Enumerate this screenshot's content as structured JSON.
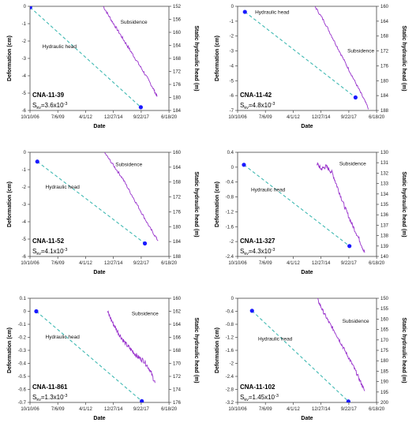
{
  "chart_data": [
    {
      "type": "line",
      "well_id": "CNA-11-39",
      "sky_label": "S",
      "sky_sub": "kv",
      "sky_value": "=3.6x10",
      "sky_exp": "-3",
      "xlabel": "Date",
      "ylabel": "Deformation (cm)",
      "y2label": "Static hydraulic head (m)",
      "x_ticks": [
        "10/10/06",
        "7/6/09",
        "4/1/12",
        "12/27/14",
        "9/22/17",
        "6/18/20"
      ],
      "y_ticks": [
        "0",
        "-1",
        "-2",
        "-3",
        "-4",
        "-5",
        "-6"
      ],
      "y2_ticks": [
        "152",
        "156",
        "160",
        "164",
        "168",
        "172",
        "176",
        "180",
        "184"
      ],
      "xlim": [
        2006.78,
        2020.47
      ],
      "ylim": [
        -6,
        0
      ],
      "y2lim": [
        152,
        184
      ],
      "series": [
        {
          "name": "Subsidence",
          "style": "solid",
          "color": "#9933cc",
          "x": [
            2014.0,
            2014.8,
            2015.6,
            2016.4,
            2017.2,
            2018.0,
            2018.9,
            2019.3
          ],
          "y": [
            0.0,
            -0.8,
            -1.55,
            -2.3,
            -3.05,
            -3.8,
            -4.7,
            -5.2
          ],
          "noise": 0.08
        },
        {
          "name": "Hydraulic head",
          "style": "dashed",
          "color": "#3fb9b2",
          "axis": "y2",
          "x": [
            2006.8,
            2017.7
          ],
          "y": [
            152.3,
            183.0
          ]
        }
      ],
      "annotations": [
        {
          "text": "Subsidence",
          "x": 2015.7,
          "y": -1.0
        },
        {
          "text": "Hydraulic head",
          "x": 2008.0,
          "y": -2.4
        }
      ]
    },
    {
      "type": "line",
      "well_id": "CNA-11-42",
      "sky_label": "S",
      "sky_sub": "kv",
      "sky_value": "=4.8x10",
      "sky_exp": "-3",
      "xlabel": "Date",
      "ylabel": "Deformation (cm)",
      "y2label": "Static hydraulic head (m)",
      "x_ticks": [
        "10/10/06",
        "7/6/09",
        "4/1/12",
        "12/27/14",
        "9/22/17",
        "6/18/20"
      ],
      "y_ticks": [
        "0",
        "-1",
        "-2",
        "-3",
        "-4",
        "-5",
        "-6",
        "-7"
      ],
      "y2_ticks": [
        "160",
        "164",
        "168",
        "172",
        "176",
        "180",
        "184",
        "188"
      ],
      "xlim": [
        2006.78,
        2020.47
      ],
      "ylim": [
        -7,
        0
      ],
      "y2lim": [
        160,
        188
      ],
      "series": [
        {
          "name": "Subsidence",
          "style": "solid",
          "color": "#9933cc",
          "x": [
            2014.4,
            2015.3,
            2016.2,
            2017.1,
            2018.0,
            2018.9,
            2019.7
          ],
          "y": [
            0.0,
            -1.0,
            -2.2,
            -3.4,
            -4.6,
            -5.8,
            -6.9
          ],
          "noise": 0.07
        },
        {
          "name": "Hydraulic head",
          "style": "dashed",
          "color": "#3fb9b2",
          "axis": "y2",
          "x": [
            2007.5,
            2018.4
          ],
          "y": [
            161.5,
            184.5
          ]
        }
      ],
      "annotations": [
        {
          "text": "Subsidence",
          "x": 2017.6,
          "y": -3.1
        },
        {
          "text": "Hydraulic head",
          "x": 2008.5,
          "y": -0.5
        }
      ]
    },
    {
      "type": "line",
      "well_id": "CNA-11-52",
      "sky_label": "S",
      "sky_sub": "kv",
      "sky_value": "=4.1x10",
      "sky_exp": "-3",
      "xlabel": "Date",
      "ylabel": "Deformation (cm)",
      "y2label": "Static hydraulic head (m)",
      "x_ticks": [
        "10/10/06",
        "7/6/09",
        "4/1/12",
        "12/27/14",
        "9/22/17",
        "6/18/20"
      ],
      "y_ticks": [
        "0",
        "-1",
        "-2",
        "-3",
        "-4",
        "-5",
        "-6"
      ],
      "y2_ticks": [
        "160",
        "164",
        "168",
        "172",
        "176",
        "180",
        "184",
        "188"
      ],
      "xlim": [
        2006.78,
        2020.47
      ],
      "ylim": [
        -6,
        0
      ],
      "y2lim": [
        160,
        188
      ],
      "series": [
        {
          "name": "Subsidence",
          "style": "solid",
          "color": "#9933cc",
          "x": [
            2014.1,
            2015.0,
            2015.9,
            2016.8,
            2017.7,
            2018.6,
            2019.4
          ],
          "y": [
            0.0,
            -0.75,
            -1.5,
            -2.45,
            -3.4,
            -4.35,
            -5.1
          ],
          "noise": 0.07
        },
        {
          "name": "Hydraulic head",
          "style": "dashed",
          "color": "#3fb9b2",
          "axis": "y2",
          "x": [
            2007.5,
            2018.1
          ],
          "y": [
            162.5,
            184.5
          ]
        }
      ],
      "annotations": [
        {
          "text": "Subsidence",
          "x": 2015.2,
          "y": -0.8
        },
        {
          "text": "Hydraulic head",
          "x": 2008.3,
          "y": -2.1
        }
      ]
    },
    {
      "type": "line",
      "well_id": "CNA-11-327",
      "sky_label": "S",
      "sky_sub": "kv",
      "sky_value": "=4.3x10",
      "sky_exp": "-3",
      "xlabel": "Date",
      "ylabel": "Deformation (cm)",
      "y2label": "Static hydraulic head (m)",
      "x_ticks": [
        "10/10/06",
        "7/6/09",
        "4/1/12",
        "12/27/14",
        "9/22/17",
        "6/18/20"
      ],
      "y_ticks": [
        "0.4",
        "0",
        "-0.4",
        "-0.8",
        "-1.2",
        "-1.6",
        "-2",
        "-2.4"
      ],
      "y2_ticks": [
        "130",
        "131",
        "132",
        "133",
        "134",
        "135",
        "136",
        "137",
        "138",
        "139",
        "140"
      ],
      "xlim": [
        2006.78,
        2020.47
      ],
      "ylim": [
        -2.4,
        0.4
      ],
      "y2lim": [
        130,
        140
      ],
      "series": [
        {
          "name": "Subsidence",
          "style": "solid",
          "color": "#9933cc",
          "x": [
            2014.6,
            2015.0,
            2015.5,
            2016.1,
            2016.7,
            2017.3,
            2018.0,
            2018.7,
            2019.3
          ],
          "y": [
            0.1,
            -0.05,
            0.02,
            -0.15,
            -0.6,
            -1.05,
            -1.5,
            -1.9,
            -2.3
          ],
          "noise": 0.12
        },
        {
          "name": "Hydraulic head",
          "style": "dashed",
          "color": "#3fb9b2",
          "axis": "y2",
          "x": [
            2007.4,
            2017.8
          ],
          "y": [
            131.2,
            139.0
          ]
        }
      ],
      "annotations": [
        {
          "text": "Subsidence",
          "x": 2016.8,
          "y": 0.05
        },
        {
          "text": "Hydraulic head",
          "x": 2008.1,
          "y": -0.65
        }
      ]
    },
    {
      "type": "line",
      "well_id": "CNA-11-861",
      "sky_label": "S",
      "sky_sub": "kv",
      "sky_value": "=1.3x10",
      "sky_exp": "-3",
      "xlabel": "Date",
      "ylabel": "Deformation (cm)",
      "y2label": "Static hydraulic head (m)",
      "x_ticks": [
        "10/10/06",
        "7/6/09",
        "4/1/12",
        "12/27/14",
        "9/22/17",
        "6/18/20"
      ],
      "y_ticks": [
        "0.1",
        "0",
        "-0.1",
        "-0.2",
        "-0.3",
        "-0.4",
        "-0.5",
        "-0.6",
        "-0.7"
      ],
      "y2_ticks": [
        "160",
        "162",
        "164",
        "166",
        "168",
        "170",
        "172",
        "174",
        "176"
      ],
      "xlim": [
        2006.78,
        2020.47
      ],
      "ylim": [
        -0.7,
        0.1
      ],
      "y2lim": [
        160,
        176
      ],
      "series": [
        {
          "name": "Subsidence",
          "style": "solid",
          "color": "#9933cc",
          "x": [
            2014.4,
            2015.0,
            2015.6,
            2016.2,
            2016.8,
            2017.4,
            2018.0,
            2018.6,
            2019.1
          ],
          "y": [
            0.0,
            -0.1,
            -0.18,
            -0.25,
            -0.3,
            -0.35,
            -0.38,
            -0.45,
            -0.55
          ],
          "noise": 0.14
        },
        {
          "name": "Hydraulic head",
          "style": "dashed",
          "color": "#3fb9b2",
          "axis": "y2",
          "x": [
            2007.4,
            2017.8
          ],
          "y": [
            162.0,
            175.8
          ]
        }
      ],
      "annotations": [
        {
          "text": "Subsidence",
          "x": 2016.8,
          "y": -0.03
        },
        {
          "text": "Hydraulic head",
          "x": 2008.3,
          "y": -0.21
        }
      ]
    },
    {
      "type": "line",
      "well_id": "CNA-11-102",
      "sky_label": "S",
      "sky_sub": "kv",
      "sky_value": "=1.45x10",
      "sky_exp": "-3",
      "xlabel": "Date",
      "ylabel": "Deformation (cm)",
      "y2label": "Static hydraulic head (m)",
      "x_ticks": [
        "10/10/06",
        "7/6/09",
        "4/1/12",
        "12/27/14",
        "9/22/17",
        "6/18/20"
      ],
      "y_ticks": [
        "0",
        "-0.4",
        "-0.8",
        "-1.2",
        "-1.6",
        "-2",
        "-2.4",
        "-2.8",
        "-3.2"
      ],
      "y2_ticks": [
        "150",
        "155",
        "160",
        "165",
        "170",
        "175",
        "180",
        "185",
        "190",
        "195",
        "200"
      ],
      "xlim": [
        2006.78,
        2020.47
      ],
      "ylim": [
        -3.2,
        0
      ],
      "y2lim": [
        150,
        200
      ],
      "series": [
        {
          "name": "Subsidence",
          "style": "solid",
          "color": "#9933cc",
          "x": [
            2014.6,
            2015.2,
            2015.8,
            2016.4,
            2017.0,
            2017.6,
            2018.2,
            2018.8,
            2019.3
          ],
          "y": [
            0.0,
            -0.4,
            -0.75,
            -1.05,
            -1.4,
            -1.75,
            -2.1,
            -2.5,
            -2.85
          ],
          "noise": 0.1
        },
        {
          "name": "Hydraulic head",
          "style": "dashed",
          "color": "#3fb9b2",
          "axis": "y2",
          "x": [
            2008.2,
            2017.7
          ],
          "y": [
            156.0,
            199.5
          ]
        }
      ],
      "annotations": [
        {
          "text": "Subsidence",
          "x": 2017.1,
          "y": -0.75
        },
        {
          "text": "Hydraulic head",
          "x": 2008.8,
          "y": -1.3
        }
      ]
    }
  ]
}
